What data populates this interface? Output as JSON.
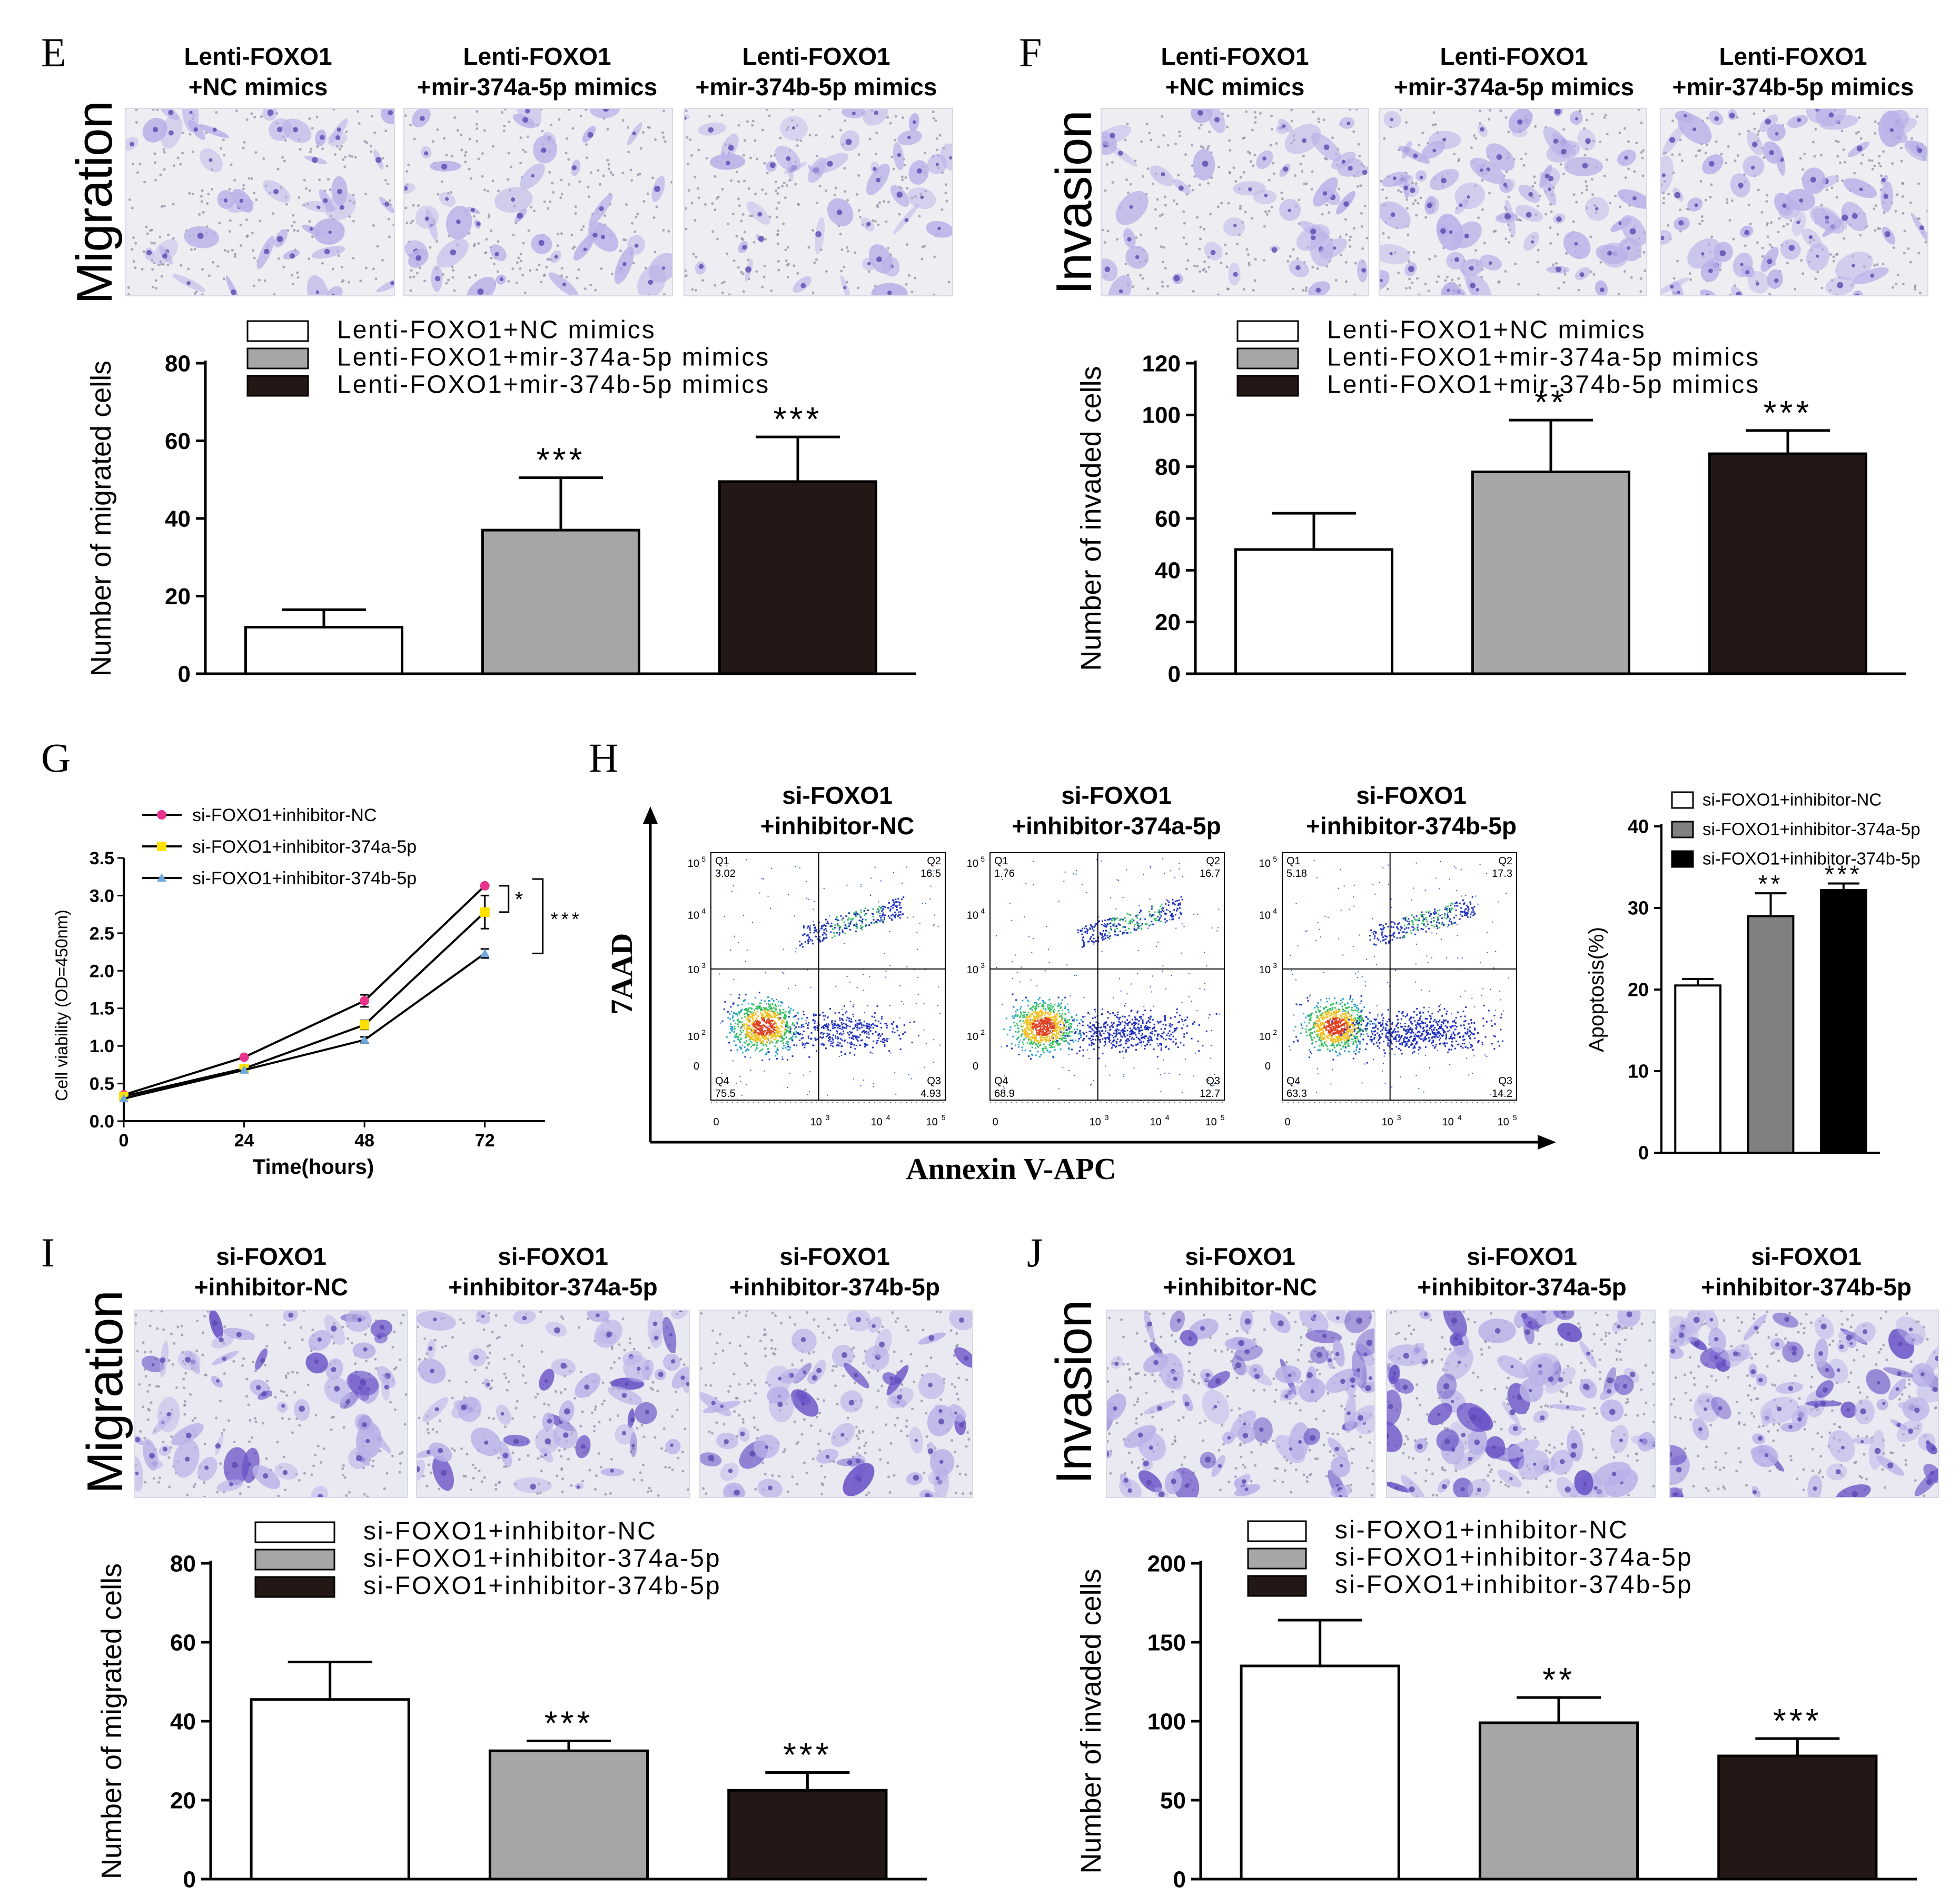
{
  "colors": {
    "white": "#ffffff",
    "gray": "#a6a6a6",
    "dark": "#231815",
    "black": "#000000",
    "pink": "#e8328c",
    "yellow": "#ffe100",
    "blue": "#6fa8dc",
    "stain_light": "#b9b2e8",
    "stain_dark": "#6a52c7",
    "background_light": "#ededf2"
  },
  "panels": {
    "E": {
      "letter": "E",
      "row_label": "Migration",
      "conditions": [
        {
          "line1": "Lenti-FOXO1",
          "line2": "+NC mimics"
        },
        {
          "line1": "Lenti-FOXO1",
          "line2": "+mir-374a-5p mimics"
        },
        {
          "line1": "Lenti-FOXO1",
          "line2": "+mir-374b-5p mimics"
        }
      ]
    },
    "F": {
      "letter": "F",
      "row_label": "Invasion",
      "conditions": [
        {
          "line1": "Lenti-FOXO1",
          "line2": "+NC mimics"
        },
        {
          "line1": "Lenti-FOXO1",
          "line2": "+mir-374a-5p mimics"
        },
        {
          "line1": "Lenti-FOXO1",
          "line2": "+mir-374b-5p mimics"
        }
      ]
    },
    "G": {
      "letter": "G"
    },
    "H": {
      "letter": "H",
      "conditions": [
        {
          "line1": "si-FOXO1",
          "line2": "+inhibitor-NC"
        },
        {
          "line1": "si-FOXO1",
          "line2": "+inhibitor-374a-5p"
        },
        {
          "line1": "si-FOXO1",
          "line2": "+inhibitor-374b-5p"
        }
      ]
    },
    "I": {
      "letter": "I",
      "row_label": "Migration",
      "conditions": [
        {
          "line1": "si-FOXO1",
          "line2": "+inhibitor-NC"
        },
        {
          "line1": "si-FOXO1",
          "line2": "+inhibitor-374a-5p"
        },
        {
          "line1": "si-FOXO1",
          "line2": "+inhibitor-374b-5p"
        }
      ]
    },
    "J": {
      "letter": "J",
      "row_label": "Invasion",
      "conditions": [
        {
          "line1": "si-FOXO1",
          "line2": "+inhibitor-NC"
        },
        {
          "line1": "si-FOXO1",
          "line2": "+inhibitor-374a-5p"
        },
        {
          "line1": "si-FOXO1",
          "line2": "+inhibitor-374b-5p"
        }
      ]
    }
  },
  "chart_data": [
    {
      "id": "E-bar",
      "type": "bar",
      "categories": [
        "Lenti-FOXO1+NC mimics",
        "Lenti-FOXO1+mir-374a-5p mimics",
        "Lenti-FOXO1+mir-374b-5p mimics"
      ],
      "values": [
        12,
        37,
        49.5
      ],
      "errors": [
        4.5,
        13.5,
        11.5
      ],
      "significance": [
        "",
        "***",
        "***"
      ],
      "fills": [
        "#ffffff",
        "#a6a6a6",
        "#231815"
      ],
      "ylabel": "Number of migrated cells",
      "ylim": [
        0,
        80
      ],
      "yticks": [
        0,
        20,
        40,
        60,
        80
      ],
      "legend": [
        "Lenti-FOXO1+NC mimics",
        "Lenti-FOXO1+mir-374a-5p mimics",
        "Lenti-FOXO1+mir-374b-5p mimics"
      ]
    },
    {
      "id": "F-bar",
      "type": "bar",
      "categories": [
        "Lenti-FOXO1+NC mimics",
        "Lenti-FOXO1+mir-374a-5p mimics",
        "Lenti-FOXO1+mir-374b-5p mimics"
      ],
      "values": [
        48,
        78,
        85
      ],
      "errors": [
        14,
        20,
        9
      ],
      "significance": [
        "",
        "**",
        "***"
      ],
      "fills": [
        "#ffffff",
        "#a6a6a6",
        "#231815"
      ],
      "ylabel": "Number of invaded cells",
      "ylim": [
        0,
        120
      ],
      "yticks": [
        0,
        20,
        40,
        60,
        80,
        100,
        120
      ],
      "legend": [
        "Lenti-FOXO1+NC mimics",
        "Lenti-FOXO1+mir-374a-5p mimics",
        "Lenti-FOXO1+mir-374b-5p mimics"
      ]
    },
    {
      "id": "G-line",
      "type": "line",
      "x": [
        0,
        24,
        48,
        72
      ],
      "series": [
        {
          "name": "si-FOXO1+inhibitor-NC",
          "values": [
            0.35,
            0.85,
            1.6,
            3.13
          ],
          "errors": [
            0.02,
            0.03,
            0.08,
            0.03
          ],
          "color": "#e8328c"
        },
        {
          "name": "si-FOXO1+inhibitor-374a-5p",
          "values": [
            0.33,
            0.7,
            1.28,
            2.78
          ],
          "errors": [
            0.02,
            0.03,
            0.06,
            0.22
          ],
          "color": "#ffe100"
        },
        {
          "name": "si-FOXO1+inhibitor-374b-5p",
          "values": [
            0.3,
            0.68,
            1.08,
            2.23
          ],
          "errors": [
            0.02,
            0.03,
            0.04,
            0.06
          ],
          "color": "#6fa8dc"
        }
      ],
      "xlabel": "Time(hours)",
      "ylabel": "Cell viability (OD=450nm)",
      "xlim": [
        0,
        84
      ],
      "xticks": [
        0,
        24,
        48,
        72
      ],
      "ylim": [
        0,
        3.5
      ],
      "yticks": [
        0.0,
        0.5,
        1.0,
        1.5,
        2.0,
        2.5,
        3.0,
        3.5
      ],
      "annotations": [
        "*",
        "***"
      ]
    },
    {
      "id": "H-flow",
      "type": "scatter",
      "xlabel": "Annexin V-APC",
      "ylabel": "7AAD",
      "plots": [
        {
          "Q1": "3.02",
          "Q2": "16.5",
          "Q3": "4.93",
          "Q4": "75.5"
        },
        {
          "Q1": "1.76",
          "Q2": "16.7",
          "Q3": "12.7",
          "Q4": "68.9"
        },
        {
          "Q1": "5.18",
          "Q2": "17.3",
          "Q3": "14.2",
          "Q4": "63.3"
        }
      ],
      "quadrant_labels": [
        "Q1",
        "Q2",
        "Q3",
        "Q4"
      ],
      "xtick_labels": [
        "0",
        "10",
        "10",
        "10"
      ],
      "xtick_exps": [
        "",
        "3",
        "4",
        "5"
      ],
      "ytick_labels": [
        "0",
        "10",
        "10",
        "10",
        "10"
      ],
      "ytick_exps": [
        "",
        "2",
        "3",
        "4",
        "5"
      ]
    },
    {
      "id": "H-bar",
      "type": "bar",
      "categories": [
        "si-FOXO1+inhibitor-NC",
        "si-FOXO1+inhibitor-374a-5p",
        "si-FOXO1+inhibitor-374b-5p"
      ],
      "values": [
        20.5,
        29,
        32.2
      ],
      "errors": [
        0.8,
        2.8,
        0.8
      ],
      "significance": [
        "",
        "**",
        "***"
      ],
      "fills": [
        "#ffffff",
        "#808080",
        "#000000"
      ],
      "ylabel": "Apoptosis(%)",
      "ylim": [
        0,
        40
      ],
      "yticks": [
        0,
        10,
        20,
        30,
        40
      ],
      "legend": [
        "si-FOXO1+inhibitor-NC",
        "si-FOXO1+inhibitor-374a-5p",
        "si-FOXO1+inhibitor-374b-5p"
      ]
    },
    {
      "id": "I-bar",
      "type": "bar",
      "categories": [
        "si-FOXO1+inhibitor-NC",
        "si-FOXO1+inhibitor-374a-5p",
        "si-FOXO1+inhibitor-374b-5p"
      ],
      "values": [
        45.5,
        32.5,
        22.5
      ],
      "errors": [
        9.5,
        2.5,
        4.5
      ],
      "significance": [
        "",
        "***",
        "***"
      ],
      "fills": [
        "#ffffff",
        "#a6a6a6",
        "#231815"
      ],
      "ylabel": "Number of migrated cells",
      "ylim": [
        0,
        80
      ],
      "yticks": [
        0,
        20,
        40,
        60,
        80
      ],
      "legend": [
        "si-FOXO1+inhibitor-NC",
        "si-FOXO1+inhibitor-374a-5p",
        "si-FOXO1+inhibitor-374b-5p"
      ]
    },
    {
      "id": "J-bar",
      "type": "bar",
      "categories": [
        "si-FOXO1+inhibitor-NC",
        "si-FOXO1+inhibitor-374a-5p",
        "si-FOXO1+inhibitor-374b-5p"
      ],
      "values": [
        135,
        99,
        78
      ],
      "errors": [
        29,
        16,
        11
      ],
      "significance": [
        "",
        "**",
        "***"
      ],
      "fills": [
        "#ffffff",
        "#a6a6a6",
        "#231815"
      ],
      "ylabel": "Number of invaded cells",
      "ylim": [
        0,
        200
      ],
      "yticks": [
        0,
        50,
        100,
        150,
        200
      ],
      "legend": [
        "si-FOXO1+inhibitor-NC",
        "si-FOXO1+inhibitor-374a-5p",
        "si-FOXO1+inhibitor-374b-5p"
      ]
    }
  ]
}
